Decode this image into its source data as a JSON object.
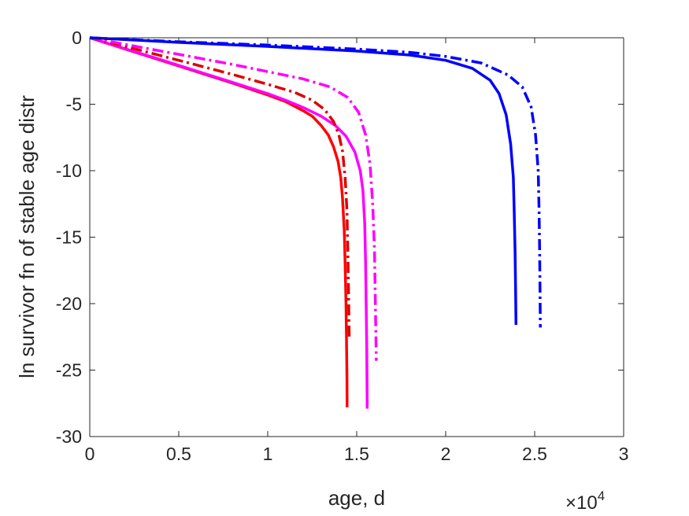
{
  "chart_data": {
    "type": "line",
    "title": "",
    "xlabel": "age, d",
    "ylabel": "ln survivor fn of stable age distr",
    "x_multiplier": {
      "base": "×10",
      "exp": "4"
    },
    "xlim": [
      0,
      30000
    ],
    "ylim": [
      -30,
      0
    ],
    "xticks": [
      0,
      5000,
      10000,
      15000,
      20000,
      25000,
      30000
    ],
    "xtick_labels": [
      "0",
      "0.5",
      "1",
      "1.5",
      "2",
      "2.5",
      "3"
    ],
    "yticks": [
      0,
      -5,
      -10,
      -15,
      -20,
      -25,
      -30
    ],
    "ytick_labels": [
      "0",
      "-5",
      "-10",
      "-15",
      "-20",
      "-25",
      "-30"
    ],
    "grid": false,
    "legend": "none",
    "series": [
      {
        "color": "#ff0000",
        "dash": "solid",
        "points": [
          [
            0,
            0
          ],
          [
            2000,
            -0.85
          ],
          [
            4000,
            -1.7
          ],
          [
            6000,
            -2.55
          ],
          [
            8000,
            -3.4
          ],
          [
            10000,
            -4.3
          ],
          [
            11000,
            -4.8
          ],
          [
            12000,
            -5.5
          ],
          [
            12500,
            -5.9
          ],
          [
            13000,
            -6.6
          ],
          [
            13400,
            -7.3
          ],
          [
            13700,
            -8.2
          ],
          [
            13950,
            -9.3
          ],
          [
            14100,
            -10.5
          ],
          [
            14200,
            -12
          ],
          [
            14300,
            -14.5
          ],
          [
            14350,
            -17
          ],
          [
            14400,
            -20
          ],
          [
            14430,
            -23
          ],
          [
            14450,
            -25.5
          ],
          [
            14460,
            -27.8
          ]
        ]
      },
      {
        "color": "#ff00ff",
        "dash": "solid",
        "points": [
          [
            0,
            0
          ],
          [
            2000,
            -0.83
          ],
          [
            4000,
            -1.65
          ],
          [
            6000,
            -2.5
          ],
          [
            8000,
            -3.35
          ],
          [
            10000,
            -4.2
          ],
          [
            11000,
            -4.7
          ],
          [
            12000,
            -5.25
          ],
          [
            13000,
            -5.9
          ],
          [
            13800,
            -6.6
          ],
          [
            14400,
            -7.4
          ],
          [
            14900,
            -8.6
          ],
          [
            15200,
            -10
          ],
          [
            15350,
            -11.5
          ],
          [
            15450,
            -14
          ],
          [
            15500,
            -17
          ],
          [
            15530,
            -20
          ],
          [
            15560,
            -23
          ],
          [
            15580,
            -26
          ],
          [
            15590,
            -27.9
          ]
        ]
      },
      {
        "color": "#dd0000",
        "dash": "dashdot",
        "points": [
          [
            0,
            0
          ],
          [
            2000,
            -0.65
          ],
          [
            4000,
            -1.35
          ],
          [
            6000,
            -2.05
          ],
          [
            8000,
            -2.75
          ],
          [
            10000,
            -3.5
          ],
          [
            11500,
            -4.1
          ],
          [
            12500,
            -4.7
          ],
          [
            13200,
            -5.4
          ],
          [
            13700,
            -6.3
          ],
          [
            14000,
            -7.3
          ],
          [
            14200,
            -8.5
          ],
          [
            14350,
            -10.5
          ],
          [
            14450,
            -13
          ],
          [
            14500,
            -16
          ],
          [
            14540,
            -19
          ],
          [
            14560,
            -21
          ],
          [
            14580,
            -22.7
          ]
        ]
      },
      {
        "color": "#ff00ff",
        "dash": "dashdot",
        "points": [
          [
            0,
            0
          ],
          [
            2000,
            -0.5
          ],
          [
            4000,
            -1.0
          ],
          [
            6000,
            -1.5
          ],
          [
            8000,
            -2.0
          ],
          [
            10000,
            -2.55
          ],
          [
            12000,
            -3.1
          ],
          [
            13500,
            -3.7
          ],
          [
            14500,
            -4.5
          ],
          [
            15100,
            -5.6
          ],
          [
            15500,
            -7.3
          ],
          [
            15750,
            -9.5
          ],
          [
            15900,
            -12.5
          ],
          [
            16000,
            -16
          ],
          [
            16050,
            -20
          ],
          [
            16080,
            -22.5
          ],
          [
            16100,
            -24.3
          ]
        ]
      },
      {
        "color": "#0000ff",
        "dash": "solid",
        "points": [
          [
            0,
            0
          ],
          [
            5000,
            -0.35
          ],
          [
            10000,
            -0.65
          ],
          [
            15000,
            -1.0
          ],
          [
            18000,
            -1.3
          ],
          [
            20000,
            -1.7
          ],
          [
            21500,
            -2.3
          ],
          [
            22500,
            -3.2
          ],
          [
            23000,
            -4.2
          ],
          [
            23400,
            -5.8
          ],
          [
            23650,
            -8
          ],
          [
            23800,
            -10.5
          ],
          [
            23850,
            -13
          ],
          [
            23900,
            -16
          ],
          [
            23930,
            -19
          ],
          [
            23950,
            -21.6
          ]
        ]
      },
      {
        "color": "#0000ff",
        "dash": "dashdot",
        "points": [
          [
            0,
            0
          ],
          [
            5000,
            -0.3
          ],
          [
            10000,
            -0.55
          ],
          [
            15000,
            -0.85
          ],
          [
            18000,
            -1.1
          ],
          [
            20000,
            -1.4
          ],
          [
            22000,
            -1.9
          ],
          [
            23500,
            -2.8
          ],
          [
            24300,
            -3.7
          ],
          [
            24800,
            -5.2
          ],
          [
            25050,
            -7.3
          ],
          [
            25200,
            -10
          ],
          [
            25250,
            -13
          ],
          [
            25280,
            -16
          ],
          [
            25300,
            -19
          ],
          [
            25320,
            -21.8
          ]
        ]
      }
    ]
  }
}
